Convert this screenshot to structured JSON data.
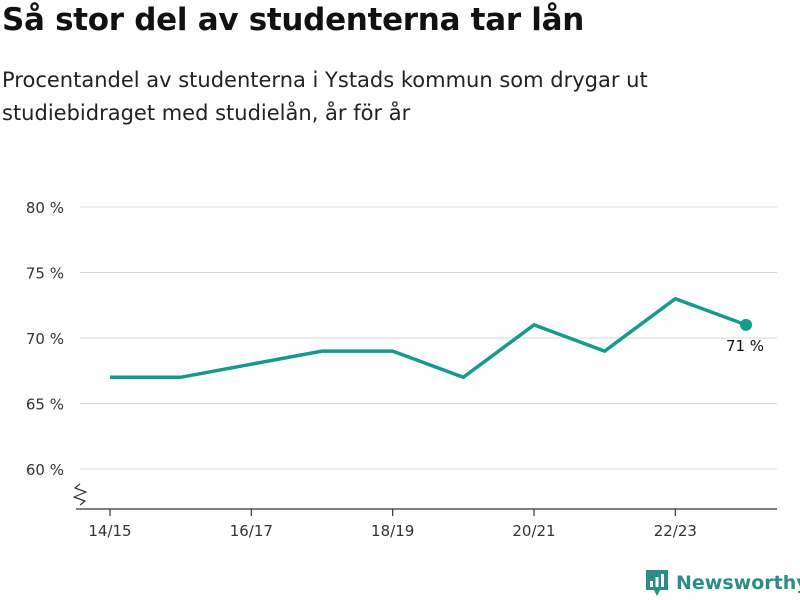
{
  "title": "Så stor del av studenterna tar lån",
  "subtitle": "Procentandel av studenterna i Ystads kommun som drygar ut studiebidraget med studielån, år för år",
  "brand": "Newsworthy",
  "colors": {
    "line": "#159a8e",
    "grid": "#d9d9d9",
    "axis": "#333333",
    "brand": "#2a8d86"
  },
  "chart_data": {
    "type": "line",
    "x": [
      "14/15",
      "15/16",
      "16/17",
      "17/18",
      "18/19",
      "19/20",
      "20/21",
      "21/22",
      "22/23",
      "23/24"
    ],
    "values": [
      67,
      67,
      68,
      69,
      69,
      67,
      71,
      69,
      73,
      71
    ],
    "x_tick_labels": [
      "14/15",
      "16/17",
      "18/19",
      "20/21",
      "22/23"
    ],
    "y_ticks": [
      60,
      65,
      70,
      75,
      80
    ],
    "y_tick_labels": [
      "60 %",
      "65 %",
      "70 %",
      "75 %",
      "80 %"
    ],
    "ylim": [
      57,
      80
    ],
    "y_axis_broken": true,
    "grid": true,
    "end_label": "71 %"
  }
}
